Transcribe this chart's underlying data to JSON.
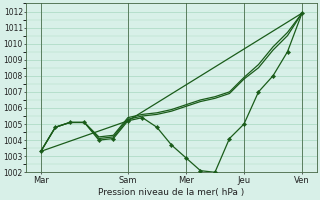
{
  "title": "",
  "xlabel": "Pression niveau de la mer( hPa )",
  "ylabel": "",
  "bg_color": "#d8f0e8",
  "grid_color": "#a8d8c0",
  "line_color": "#1a5c1a",
  "marker_color": "#1a5c1a",
  "ylim": [
    1002,
    1012.5
  ],
  "yticks": [
    1002,
    1003,
    1004,
    1005,
    1006,
    1007,
    1008,
    1009,
    1010,
    1011,
    1012
  ],
  "x_tick_labels": [
    "Mar",
    "Sam",
    "Mer",
    "Jeu",
    "Ven"
  ],
  "x_tick_positions": [
    1,
    4,
    6,
    8,
    10
  ],
  "series1_x": [
    1,
    1.5,
    2,
    2.5,
    3,
    3.5,
    4,
    4.5,
    5,
    5.5,
    6,
    6.5,
    7,
    7.5,
    8,
    8.5,
    9,
    9.5,
    10
  ],
  "series1_y": [
    1003.3,
    1004.8,
    1005.1,
    1005.1,
    1004.0,
    1004.1,
    1005.2,
    1005.4,
    1004.8,
    1003.7,
    1002.9,
    1002.1,
    1002.0,
    1004.1,
    1005.0,
    1007.0,
    1008.0,
    1009.5,
    1011.9
  ],
  "series2_x": [
    1,
    1.5,
    2,
    2.5,
    3,
    3.5,
    4,
    4.5,
    5,
    5.5,
    6,
    6.5,
    7,
    7.5,
    8,
    8.5,
    9,
    9.5,
    10
  ],
  "series2_y": [
    1003.3,
    1004.8,
    1005.1,
    1005.1,
    1004.1,
    1004.2,
    1005.3,
    1005.5,
    1005.6,
    1005.8,
    1006.1,
    1006.4,
    1006.6,
    1006.9,
    1007.8,
    1008.5,
    1009.6,
    1010.5,
    1011.9
  ],
  "series3_x": [
    1,
    1.5,
    2,
    2.5,
    3,
    3.5,
    4,
    4.5,
    5,
    5.5,
    6,
    6.5,
    7,
    7.5,
    8,
    8.5,
    9,
    9.5,
    10
  ],
  "series3_y": [
    1003.3,
    1004.8,
    1005.1,
    1005.1,
    1004.2,
    1004.3,
    1005.4,
    1005.6,
    1005.7,
    1005.9,
    1006.2,
    1006.5,
    1006.7,
    1007.0,
    1007.9,
    1008.7,
    1009.8,
    1010.7,
    1011.9
  ],
  "series4_x": [
    1,
    4,
    10
  ],
  "series4_y": [
    1003.3,
    1005.2,
    1011.9
  ],
  "xlim": [
    0.5,
    10.5
  ],
  "vlines": [
    1,
    4,
    6,
    8,
    10
  ],
  "figsize": [
    3.2,
    2.0
  ],
  "dpi": 100
}
